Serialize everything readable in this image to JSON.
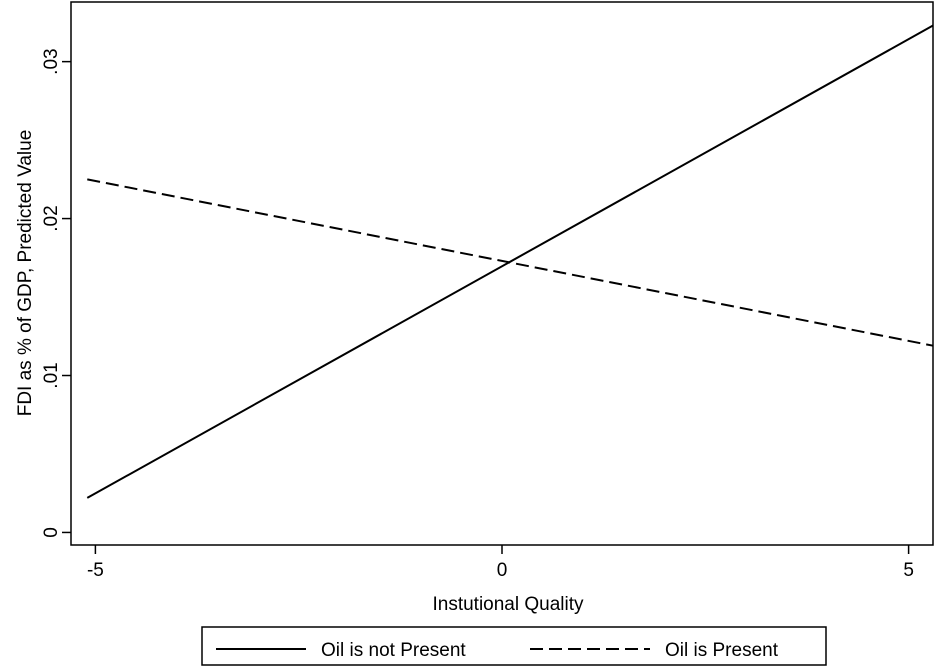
{
  "chart_data": {
    "type": "line",
    "xlabel": "Instutional Quality",
    "ylabel": "FDI as % of GDP, Predicted Value",
    "x_ticks": [
      -5,
      0,
      5
    ],
    "x_tick_labels": [
      "-5",
      "0",
      "5"
    ],
    "y_ticks": [
      0,
      0.01,
      0.02,
      0.03
    ],
    "y_tick_labels": [
      "0",
      ".01",
      ".02",
      ".03"
    ],
    "xlim": [
      -5.3,
      5.3
    ],
    "ylim": [
      -0.0008,
      0.0338
    ],
    "grid": false,
    "legend_position": "bottom-center",
    "series": [
      {
        "name": "Oil is not Present",
        "style": "solid",
        "color": "#000000",
        "x": [
          -5.1,
          5.3
        ],
        "y": [
          0.0022,
          0.0323
        ]
      },
      {
        "name": "Oil is Present",
        "style": "dashed",
        "color": "#000000",
        "x": [
          -5.1,
          5.3
        ],
        "y": [
          0.0225,
          0.0119
        ]
      }
    ]
  }
}
